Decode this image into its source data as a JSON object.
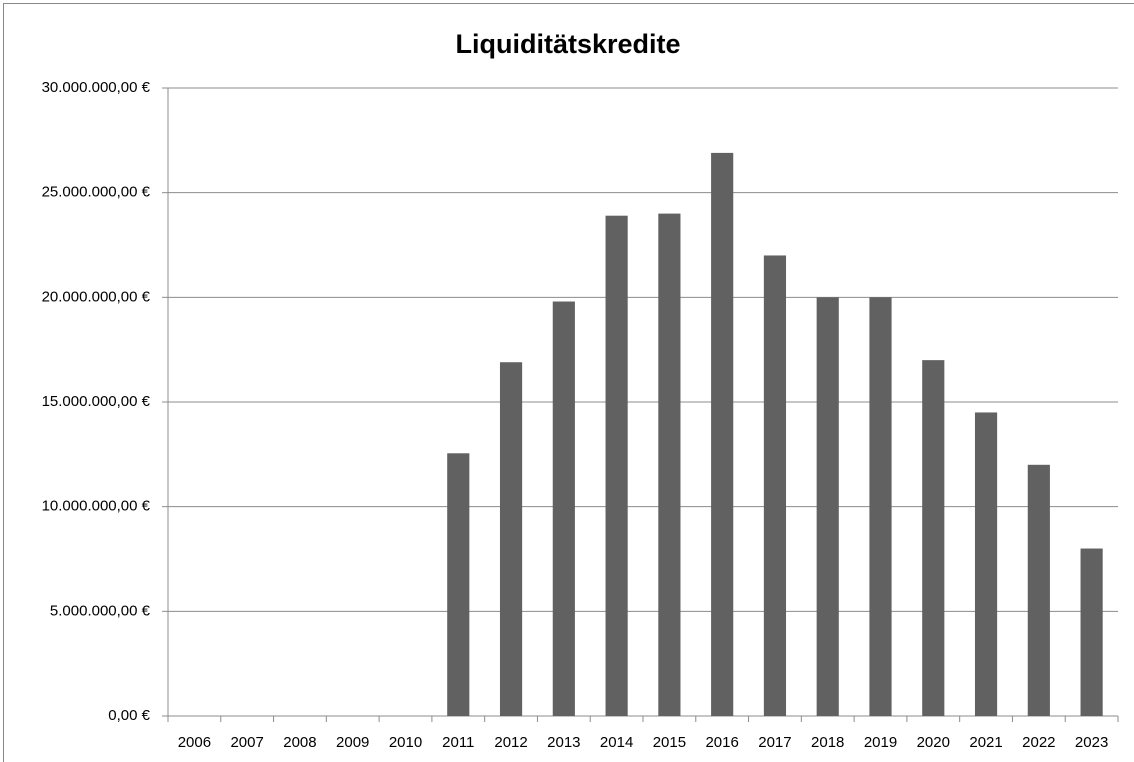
{
  "chart_data": {
    "type": "bar",
    "title": "Liquiditätskredite",
    "categories": [
      "2006",
      "2007",
      "2008",
      "2009",
      "2010",
      "2011",
      "2012",
      "2013",
      "2014",
      "2015",
      "2016",
      "2017",
      "2018",
      "2019",
      "2020",
      "2021",
      "2022",
      "2023"
    ],
    "values": [
      0,
      0,
      0,
      0,
      0,
      12550000,
      16900000,
      19800000,
      23900000,
      24000000,
      26900000,
      22000000,
      20000000,
      20000000,
      17000000,
      14500000,
      12000000,
      8000000
    ],
    "color": "#616161",
    "ylim": [
      0,
      30000000
    ],
    "yticks": [
      {
        "value": 0,
        "label": "0,00 €"
      },
      {
        "value": 5000000,
        "label": "5.000.000,00 €"
      },
      {
        "value": 10000000,
        "label": "10.000.000,00 €"
      },
      {
        "value": 15000000,
        "label": "15.000.000,00 €"
      },
      {
        "value": 20000000,
        "label": "20.000.000,00 €"
      },
      {
        "value": 25000000,
        "label": "25.000.000,00 €"
      },
      {
        "value": 30000000,
        "label": "30.000.000,00 €"
      }
    ],
    "grid": true
  }
}
